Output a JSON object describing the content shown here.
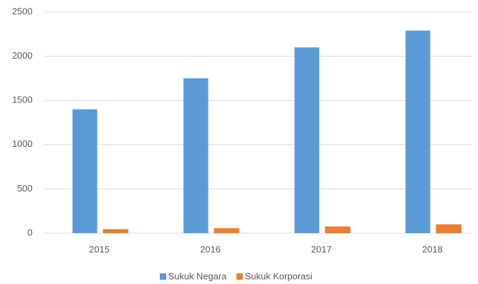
{
  "chart_data": {
    "type": "bar",
    "categories": [
      "2015",
      "2016",
      "2017",
      "2018"
    ],
    "series": [
      {
        "name": "Sukuk Negara",
        "color": "#5b9bd5",
        "values": [
          1400,
          1750,
          2100,
          2290
        ]
      },
      {
        "name": "Sukuk Korporasi",
        "color": "#ed7d31",
        "values": [
          45,
          55,
          75,
          100
        ]
      }
    ],
    "ylim": [
      0,
      2500
    ],
    "yticks": [
      0,
      500,
      1000,
      1500,
      2000,
      2500
    ],
    "grid": true,
    "legend": "bottom"
  }
}
